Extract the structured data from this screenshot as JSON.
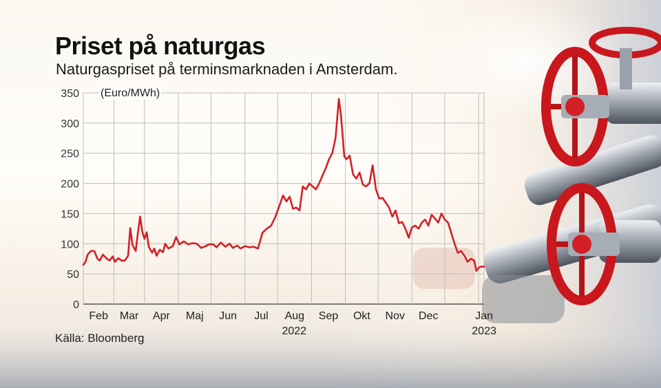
{
  "header": {
    "title": "Priset på naturgas",
    "subtitle": "Naturgaspriset på terminsmarknaden i Amsterdam."
  },
  "footer": {
    "source": "Källa: Bloomberg"
  },
  "colors": {
    "line": "#d31f26",
    "valve": "#c8171d",
    "grid": "#bdbdbd"
  },
  "chart_data": {
    "type": "line",
    "unit_label": "(Euro/MWh)",
    "ylim": [
      0,
      350
    ],
    "yticks": [
      0,
      50,
      100,
      150,
      200,
      250,
      300,
      350
    ],
    "xlim": [
      "2022-01-04",
      "2023-01-06"
    ],
    "month_ticks": [
      {
        "label": "Feb",
        "date": "2022-02-01"
      },
      {
        "label": "Mar",
        "date": "2022-03-01"
      },
      {
        "label": "Apr",
        "date": "2022-04-01"
      },
      {
        "label": "Maj",
        "date": "2022-05-01"
      },
      {
        "label": "Jun",
        "date": "2022-06-01"
      },
      {
        "label": "Jul",
        "date": "2022-07-01"
      },
      {
        "label": "Aug",
        "date": "2022-08-01"
      },
      {
        "label": "Sep",
        "date": "2022-09-01"
      },
      {
        "label": "Okt",
        "date": "2022-10-01"
      },
      {
        "label": "Nov",
        "date": "2022-11-01"
      },
      {
        "label": "Dec",
        "date": "2022-12-01"
      },
      {
        "label": "Jan",
        "date": "2023-01-01"
      }
    ],
    "year_labels": [
      {
        "label": "2022",
        "date": "2022-07-01"
      },
      {
        "label": "2023",
        "date": "2023-01-01"
      }
    ],
    "grid": true,
    "series": [
      {
        "points": [
          [
            "2022-01-04",
            65
          ],
          [
            "2022-01-06",
            70
          ],
          [
            "2022-01-08",
            82
          ],
          [
            "2022-01-11",
            88
          ],
          [
            "2022-01-14",
            88
          ],
          [
            "2022-01-17",
            75
          ],
          [
            "2022-01-19",
            72
          ],
          [
            "2022-01-22",
            82
          ],
          [
            "2022-01-25",
            76
          ],
          [
            "2022-01-28",
            72
          ],
          [
            "2022-01-31",
            79
          ],
          [
            "2022-02-02",
            70
          ],
          [
            "2022-02-05",
            76
          ],
          [
            "2022-02-08",
            72
          ],
          [
            "2022-02-11",
            72
          ],
          [
            "2022-02-14",
            80
          ],
          [
            "2022-02-16",
            126
          ],
          [
            "2022-02-18",
            98
          ],
          [
            "2022-02-21",
            88
          ],
          [
            "2022-02-23",
            118
          ],
          [
            "2022-02-25",
            145
          ],
          [
            "2022-02-27",
            120
          ],
          [
            "2022-03-01",
            108
          ],
          [
            "2022-03-03",
            119
          ],
          [
            "2022-03-05",
            95
          ],
          [
            "2022-03-08",
            85
          ],
          [
            "2022-03-10",
            92
          ],
          [
            "2022-03-12",
            80
          ],
          [
            "2022-03-15",
            90
          ],
          [
            "2022-03-18",
            86
          ],
          [
            "2022-03-20",
            100
          ],
          [
            "2022-03-23",
            92
          ],
          [
            "2022-03-27",
            96
          ],
          [
            "2022-03-30",
            111
          ],
          [
            "2022-04-02",
            99
          ],
          [
            "2022-04-06",
            104
          ],
          [
            "2022-04-10",
            99
          ],
          [
            "2022-04-14",
            101
          ],
          [
            "2022-04-18",
            100
          ],
          [
            "2022-04-22",
            93
          ],
          [
            "2022-04-26",
            96
          ],
          [
            "2022-04-29",
            99
          ],
          [
            "2022-05-03",
            99
          ],
          [
            "2022-05-06",
            94
          ],
          [
            "2022-05-10",
            102
          ],
          [
            "2022-05-14",
            95
          ],
          [
            "2022-05-18",
            100
          ],
          [
            "2022-05-21",
            93
          ],
          [
            "2022-05-25",
            97
          ],
          [
            "2022-05-28",
            92
          ],
          [
            "2022-06-01",
            96
          ],
          [
            "2022-06-05",
            94
          ],
          [
            "2022-06-09",
            95
          ],
          [
            "2022-06-13",
            92
          ],
          [
            "2022-06-17",
            118
          ],
          [
            "2022-06-21",
            125
          ],
          [
            "2022-06-25",
            130
          ],
          [
            "2022-06-29",
            145
          ],
          [
            "2022-07-03",
            165
          ],
          [
            "2022-07-06",
            180
          ],
          [
            "2022-07-09",
            170
          ],
          [
            "2022-07-12",
            178
          ],
          [
            "2022-07-15",
            158
          ],
          [
            "2022-07-18",
            160
          ],
          [
            "2022-07-21",
            155
          ],
          [
            "2022-07-24",
            195
          ],
          [
            "2022-07-27",
            190
          ],
          [
            "2022-07-30",
            200
          ],
          [
            "2022-08-02",
            195
          ],
          [
            "2022-08-05",
            190
          ],
          [
            "2022-08-08",
            200
          ],
          [
            "2022-08-11",
            213
          ],
          [
            "2022-08-14",
            225
          ],
          [
            "2022-08-17",
            240
          ],
          [
            "2022-08-20",
            250
          ],
          [
            "2022-08-23",
            275
          ],
          [
            "2022-08-26",
            340
          ],
          [
            "2022-08-28",
            312
          ],
          [
            "2022-08-31",
            245
          ],
          [
            "2022-09-02",
            240
          ],
          [
            "2022-09-05",
            246
          ],
          [
            "2022-09-08",
            215
          ],
          [
            "2022-09-11",
            208
          ],
          [
            "2022-09-14",
            218
          ],
          [
            "2022-09-17",
            198
          ],
          [
            "2022-09-20",
            195
          ],
          [
            "2022-09-23",
            200
          ],
          [
            "2022-09-26",
            230
          ],
          [
            "2022-09-29",
            190
          ],
          [
            "2022-10-02",
            175
          ],
          [
            "2022-10-05",
            176
          ],
          [
            "2022-10-08",
            168
          ],
          [
            "2022-10-11",
            160
          ],
          [
            "2022-10-14",
            145
          ],
          [
            "2022-10-17",
            155
          ],
          [
            "2022-10-20",
            134
          ],
          [
            "2022-10-23",
            136
          ],
          [
            "2022-10-26",
            125
          ],
          [
            "2022-10-29",
            110
          ],
          [
            "2022-11-01",
            127
          ],
          [
            "2022-11-04",
            130
          ],
          [
            "2022-11-07",
            125
          ],
          [
            "2022-11-10",
            135
          ],
          [
            "2022-11-13",
            140
          ],
          [
            "2022-11-16",
            130
          ],
          [
            "2022-11-19",
            148
          ],
          [
            "2022-11-22",
            142
          ],
          [
            "2022-11-25",
            135
          ],
          [
            "2022-11-28",
            150
          ],
          [
            "2022-12-01",
            140
          ],
          [
            "2022-12-04",
            135
          ],
          [
            "2022-12-07",
            118
          ],
          [
            "2022-12-10",
            100
          ],
          [
            "2022-12-13",
            85
          ],
          [
            "2022-12-16",
            88
          ],
          [
            "2022-12-19",
            80
          ],
          [
            "2022-12-22",
            70
          ],
          [
            "2022-12-25",
            75
          ],
          [
            "2022-12-28",
            72
          ],
          [
            "2022-12-30",
            55
          ],
          [
            "2023-01-01",
            60
          ],
          [
            "2023-01-03",
            62
          ],
          [
            "2023-01-06",
            62
          ]
        ]
      }
    ]
  }
}
